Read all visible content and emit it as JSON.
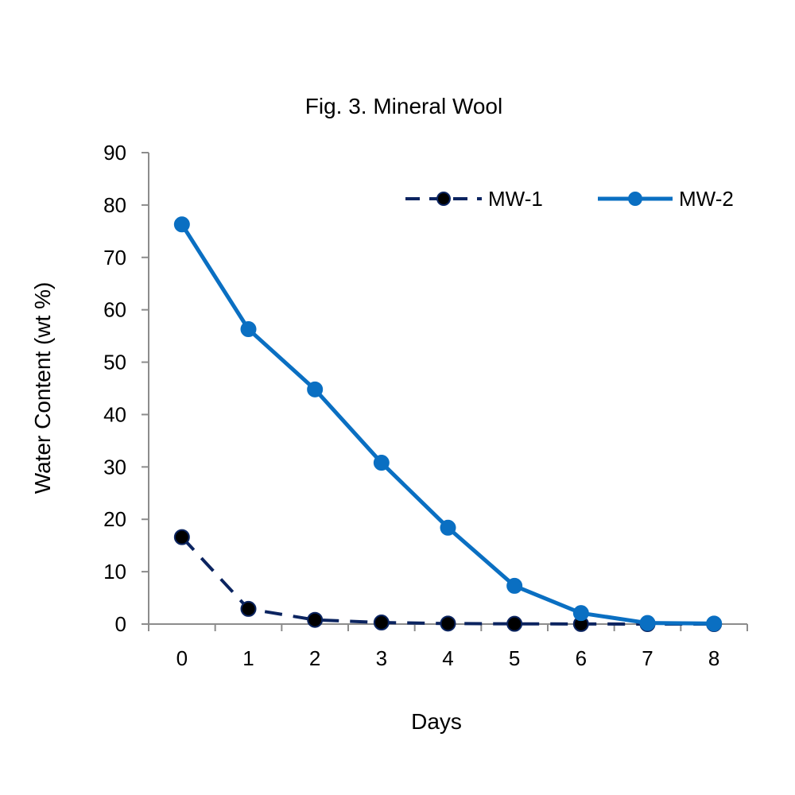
{
  "chart_data": {
    "type": "line",
    "title": "Fig. 3. Mineral Wool",
    "xlabel": "Days",
    "ylabel": "Water Content (wt %)",
    "x": [
      0,
      1,
      2,
      3,
      4,
      5,
      6,
      7,
      8
    ],
    "xlim": [
      -0.5,
      8.5
    ],
    "ylim": [
      0,
      90
    ],
    "yticks": [
      0,
      10,
      20,
      30,
      40,
      50,
      60,
      70,
      80,
      90
    ],
    "grid": false,
    "legend_position": "top-right",
    "series": [
      {
        "name": "MW-1",
        "values": [
          16.6,
          2.9,
          0.8,
          0.3,
          0.1,
          0.05,
          0.02,
          0.0,
          0.0
        ],
        "line_color": "#0b2460",
        "marker_color": "#000000",
        "line_style": "dashed"
      },
      {
        "name": "MW-2",
        "values": [
          76.3,
          56.3,
          44.8,
          30.8,
          18.4,
          7.3,
          2.1,
          0.2,
          0.1
        ],
        "line_color": "#0a6fc2",
        "marker_color": "#0a6fc2",
        "line_style": "solid"
      }
    ]
  }
}
